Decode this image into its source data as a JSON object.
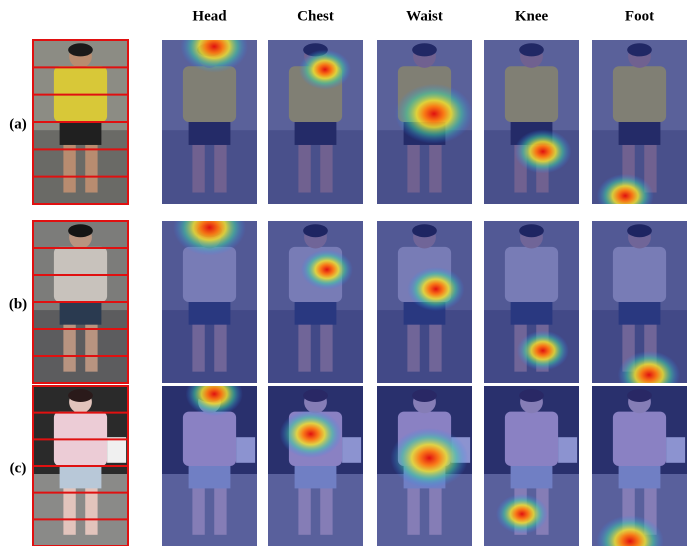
{
  "columns": [
    "Head",
    "Chest",
    "Waist",
    "Knee",
    "Foot"
  ],
  "rows": [
    "(a)",
    "(b)",
    "(c)"
  ]
}
